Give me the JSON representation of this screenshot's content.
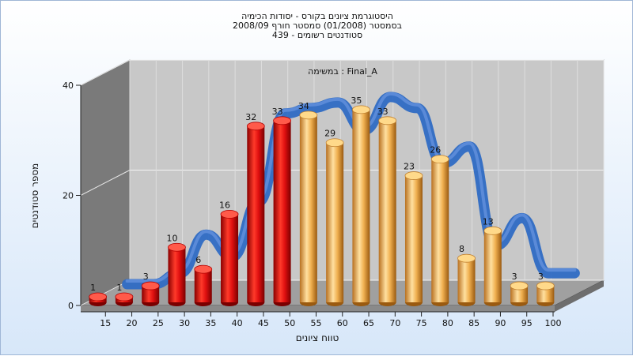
{
  "chart_data": {
    "type": "bar",
    "title_lines": [
      "היסטוגרמת ציונים בקורס - יסודות הכימיה",
      "בסמסטר  (01/2008)  סמסטר חורף 2008/09",
      "סטודנטים רשומים - 439"
    ],
    "subtitle": "במשימה : Final_A",
    "xlabel": "טווח ציונים",
    "ylabel": "מספר סטודנטים",
    "ylim": [
      0,
      40
    ],
    "yticks": [
      0,
      20,
      40
    ],
    "categories": [
      "15",
      "20",
      "25",
      "30",
      "35",
      "40",
      "45",
      "50",
      "55",
      "60",
      "65",
      "70",
      "75",
      "80",
      "85",
      "90",
      "95",
      "100"
    ],
    "values": [
      1,
      1,
      3,
      10,
      6,
      16,
      32,
      33,
      34,
      29,
      35,
      33,
      23,
      26,
      8,
      13,
      3,
      3
    ],
    "bar_colors": [
      "#e01010",
      "#e01010",
      "#e01010",
      "#e01010",
      "#e01010",
      "#e01010",
      "#e01010",
      "#e01010",
      "#f0b050",
      "#f0b050",
      "#f0b050",
      "#f0b050",
      "#f0b050",
      "#f0b050",
      "#f0b050",
      "#f0b050",
      "#f0b050",
      "#f0b050"
    ],
    "trend_line": {
      "color": "#2f6bc4"
    },
    "grid": true,
    "colors": {
      "wall": "#c8c8c8",
      "side_wall": "#7a7a7a",
      "floor": "#a0a0a0"
    }
  }
}
